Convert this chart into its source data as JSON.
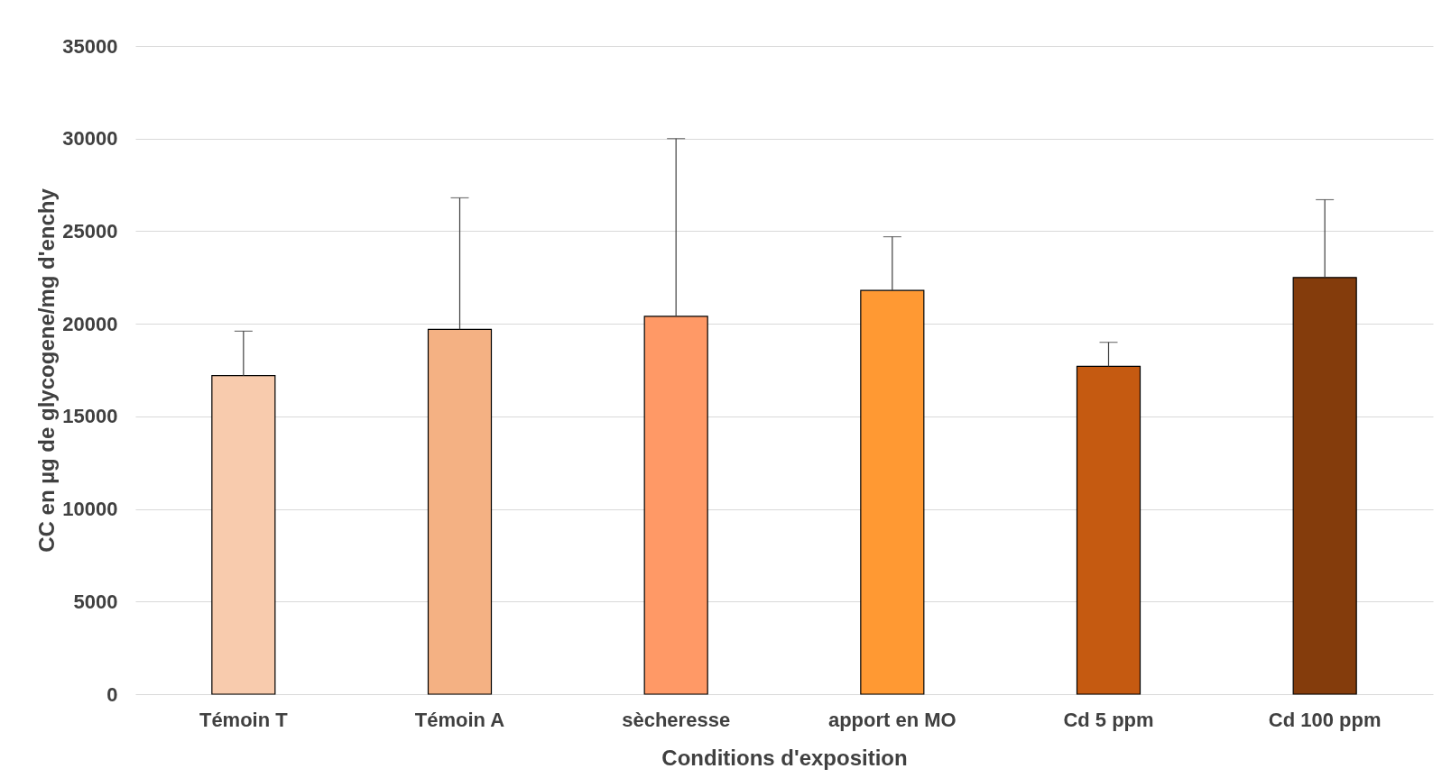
{
  "chart_data": {
    "type": "bar",
    "xlabel": "Conditions d'exposition",
    "ylabel": "CC en µg de glycogene/mg d'enchy",
    "categories": [
      "Témoin T",
      "Témoin A",
      "sècheresse",
      "apport en MO",
      "Cd 5 ppm",
      "Cd 100 ppm"
    ],
    "values": [
      17200,
      19700,
      20400,
      21800,
      17700,
      22500
    ],
    "errors": [
      [
        17200,
        19600
      ],
      [
        19700,
        26800
      ],
      [
        20400,
        30000
      ],
      [
        21800,
        24700
      ],
      [
        17700,
        19000
      ],
      [
        22500,
        26700
      ]
    ],
    "colors": [
      "#f8cbad",
      "#f4b183",
      "#ff9966",
      "#ff9933",
      "#c55a11",
      "#843c0c"
    ],
    "ylim": [
      0,
      35000
    ],
    "yticks": [
      0,
      5000,
      10000,
      15000,
      20000,
      25000,
      30000,
      35000
    ],
    "grid": "y"
  }
}
